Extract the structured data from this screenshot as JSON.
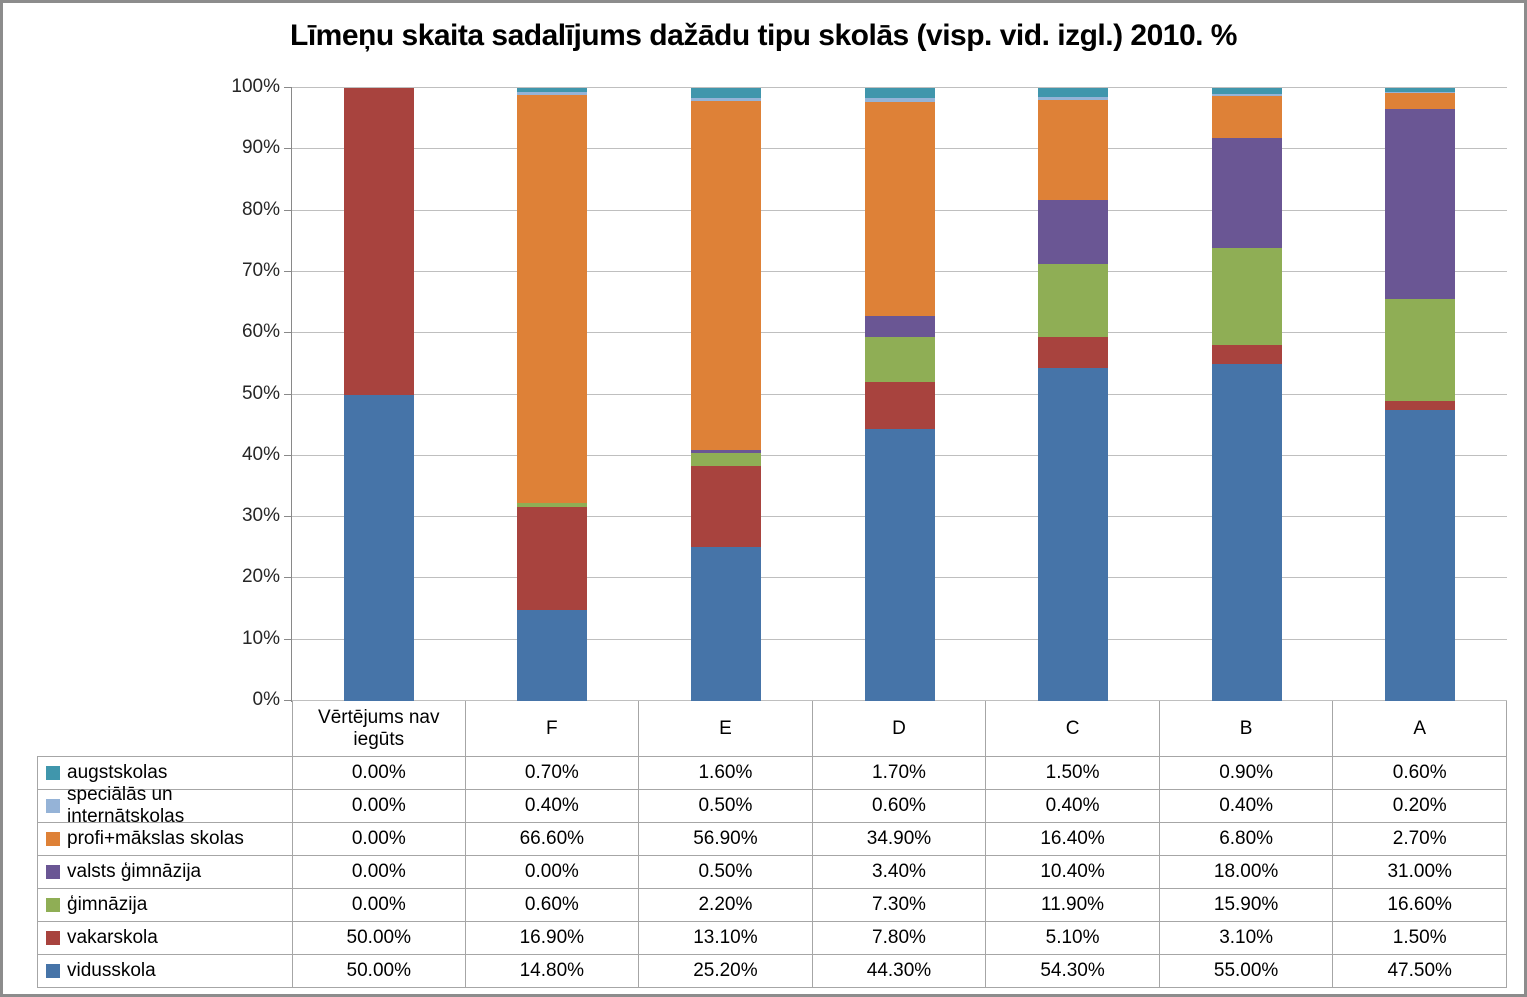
{
  "chart_data": {
    "type": "bar",
    "stacked": true,
    "percent_stacked": true,
    "title": "Līmeņu skaita sadalījums dažādu tipu skolās (visp. vid. izgl.) 2010. %",
    "categories": [
      "Vērtējums nav iegūts",
      "F",
      "E",
      "D",
      "C",
      "B",
      "A"
    ],
    "series": [
      {
        "name": "augstskolas",
        "color": "#4096ac",
        "values": [
          0.0,
          0.7,
          1.6,
          1.7,
          1.5,
          0.9,
          0.6
        ]
      },
      {
        "name": "speciālās un internātskolas",
        "color": "#95b3d7",
        "values": [
          0.0,
          0.4,
          0.5,
          0.6,
          0.4,
          0.4,
          0.2
        ]
      },
      {
        "name": "profi+mākslas skolas",
        "color": "#de8137",
        "values": [
          0.0,
          66.6,
          56.9,
          34.9,
          16.4,
          6.8,
          2.7
        ]
      },
      {
        "name": "valsts ģimnāzija",
        "color": "#6a5694",
        "values": [
          0.0,
          0.0,
          0.5,
          3.4,
          10.4,
          18.0,
          31.0
        ]
      },
      {
        "name": "ģimnāzija",
        "color": "#8fae55",
        "values": [
          0.0,
          0.6,
          2.2,
          7.3,
          11.9,
          15.9,
          16.6
        ]
      },
      {
        "name": "vakarskola",
        "color": "#a8433e",
        "values": [
          50.0,
          16.9,
          13.1,
          7.8,
          5.1,
          3.1,
          1.5
        ]
      },
      {
        "name": "vidusskola",
        "color": "#4674a8",
        "values": [
          50.0,
          14.8,
          25.2,
          44.3,
          54.3,
          55.0,
          47.5
        ]
      }
    ],
    "y_ticks": [
      "0%",
      "10%",
      "20%",
      "30%",
      "40%",
      "50%",
      "60%",
      "70%",
      "80%",
      "90%",
      "100%"
    ],
    "ylim": [
      0,
      100
    ],
    "value_suffix": "%",
    "value_decimals": 2,
    "grid": true,
    "legend_position": "table-left"
  },
  "frame": {
    "border_color": "#8c8c8c",
    "gridline_color": "#bfbfbf",
    "axis_color": "#898989",
    "table_border_color": "#a6a6a6"
  }
}
